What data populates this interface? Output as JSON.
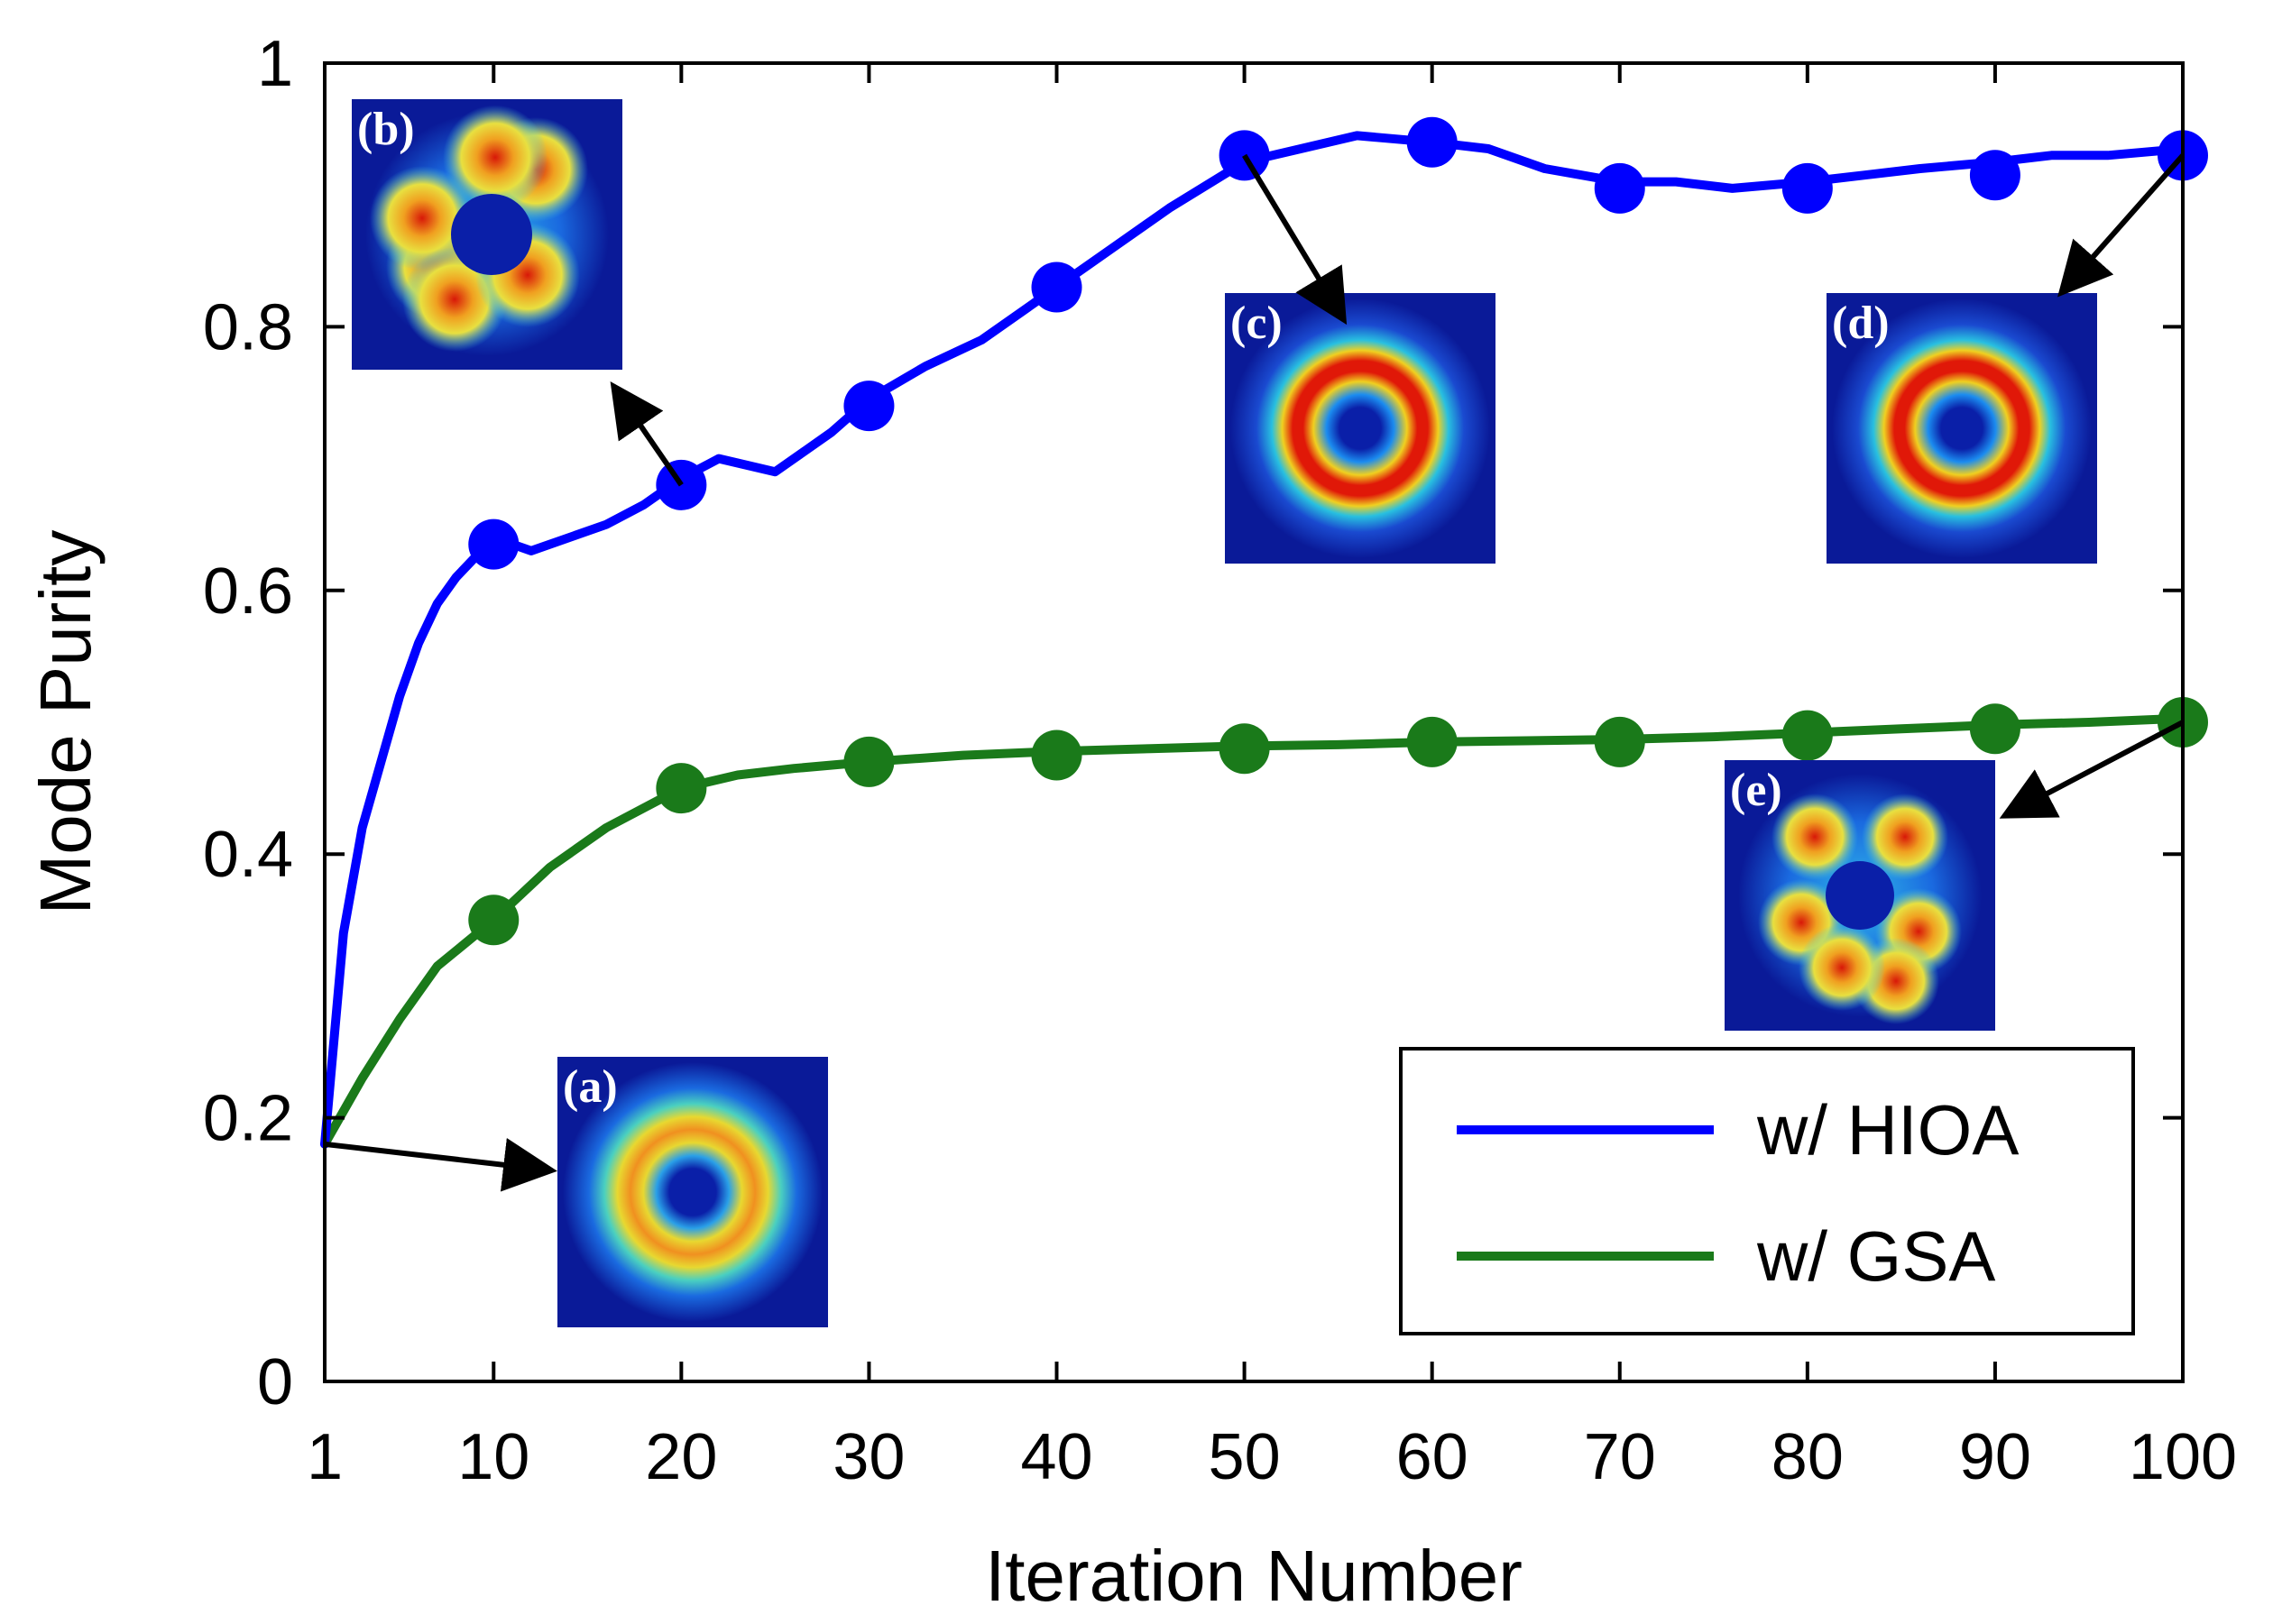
{
  "chart_data": {
    "type": "line",
    "title": "",
    "xlabel": "Iteration Number",
    "ylabel": "Mode Purity",
    "xlim": [
      1,
      100
    ],
    "ylim": [
      0,
      1
    ],
    "xticks": [
      1,
      10,
      20,
      30,
      40,
      50,
      60,
      70,
      80,
      90,
      100
    ],
    "xtick_labels": [
      "1",
      "10",
      "20",
      "30",
      "40",
      "50",
      "60",
      "70",
      "80",
      "90",
      "100"
    ],
    "yticks": [
      0,
      0.2,
      0.4,
      0.6,
      0.8,
      1
    ],
    "ytick_labels": [
      "0",
      "0.2",
      "0.4",
      "0.6",
      "0.8",
      "1"
    ],
    "grid": false,
    "legend_position": "bottom-right",
    "series": [
      {
        "name": "w/ HIOA",
        "color": "#0000ff",
        "line_x": [
          1,
          2,
          3,
          4,
          5,
          6,
          7,
          8,
          9,
          10,
          12,
          14,
          16,
          18,
          20,
          22,
          25,
          28,
          30,
          33,
          36,
          40,
          43,
          46,
          50,
          53,
          56,
          60,
          63,
          66,
          70,
          73,
          76,
          80,
          83,
          86,
          90,
          93,
          96,
          100
        ],
        "line_y": [
          0.18,
          0.34,
          0.42,
          0.47,
          0.52,
          0.56,
          0.59,
          0.61,
          0.625,
          0.64,
          0.63,
          0.64,
          0.65,
          0.665,
          0.685,
          0.7,
          0.69,
          0.72,
          0.745,
          0.77,
          0.79,
          0.83,
          0.86,
          0.89,
          0.925,
          0.935,
          0.945,
          0.94,
          0.935,
          0.92,
          0.91,
          0.91,
          0.905,
          0.91,
          0.915,
          0.92,
          0.925,
          0.93,
          0.93,
          0.935
        ],
        "marker_x": [
          10,
          20,
          30,
          40,
          50,
          60,
          70,
          80,
          90,
          100
        ],
        "marker_y": [
          0.635,
          0.68,
          0.74,
          0.83,
          0.93,
          0.94,
          0.905,
          0.905,
          0.915,
          0.93
        ]
      },
      {
        "name": "w/ GSA",
        "color": "#1a7a1a",
        "line_x": [
          1,
          3,
          5,
          7,
          10,
          13,
          16,
          20,
          23,
          26,
          30,
          35,
          40,
          45,
          50,
          55,
          60,
          65,
          70,
          75,
          80,
          85,
          90,
          95,
          100
        ],
        "line_y": [
          0.18,
          0.23,
          0.275,
          0.315,
          0.35,
          0.39,
          0.42,
          0.45,
          0.46,
          0.465,
          0.47,
          0.475,
          0.478,
          0.48,
          0.482,
          0.483,
          0.485,
          0.486,
          0.487,
          0.489,
          0.492,
          0.495,
          0.498,
          0.5,
          0.503
        ],
        "marker_x": [
          10,
          20,
          30,
          40,
          50,
          60,
          70,
          80,
          90,
          100
        ],
        "marker_y": [
          0.35,
          0.45,
          0.47,
          0.475,
          0.48,
          0.485,
          0.485,
          0.49,
          0.495,
          0.5
        ]
      }
    ],
    "insets": [
      {
        "label": "(a)",
        "pattern": "ring-noisy",
        "arrow_from_x": 1,
        "arrow_from_y": 0.18
      },
      {
        "label": "(b)",
        "pattern": "broken-ring",
        "arrow_from_x": 20,
        "arrow_from_y": 0.68
      },
      {
        "label": "(c)",
        "pattern": "ring",
        "arrow_from_x": 50,
        "arrow_from_y": 0.93
      },
      {
        "label": "(d)",
        "pattern": "ring",
        "arrow_from_x": 100,
        "arrow_from_y": 0.93
      },
      {
        "label": "(e)",
        "pattern": "spots",
        "arrow_from_x": 100,
        "arrow_from_y": 0.5
      }
    ]
  }
}
